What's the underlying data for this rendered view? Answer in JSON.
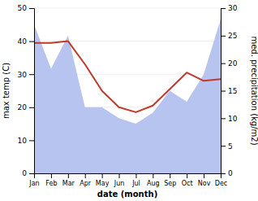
{
  "chart_data": {
    "type": "line",
    "xlabel": "date (month)",
    "ylabel": "max temp (C)",
    "y2label": "med. precipitation (kg/m2)",
    "categories": [
      "Jan",
      "Feb",
      "Mar",
      "Apr",
      "May",
      "Jun",
      "Jul",
      "Aug",
      "Sep",
      "Oct",
      "Nov",
      "Dec"
    ],
    "series": [
      {
        "type": "area",
        "axis": "y2",
        "color": "#b8c4f0",
        "values": [
          27,
          19,
          25,
          12,
          12,
          10,
          9,
          11,
          15,
          13,
          18,
          28
        ]
      },
      {
        "type": "line",
        "color": "#c0392b",
        "values": [
          39.5,
          39.5,
          40.0,
          33.0,
          25.0,
          20.0,
          18.5,
          20.5,
          25.5,
          30.5,
          28.0,
          28.5
        ]
      }
    ],
    "ylim": [
      0,
      50
    ],
    "yticks": [
      0,
      10,
      20,
      30,
      40,
      50
    ],
    "y2lim": [
      0,
      30
    ],
    "y2ticks": [
      0,
      5,
      10,
      15,
      20,
      25,
      30
    ],
    "grid": true
  }
}
